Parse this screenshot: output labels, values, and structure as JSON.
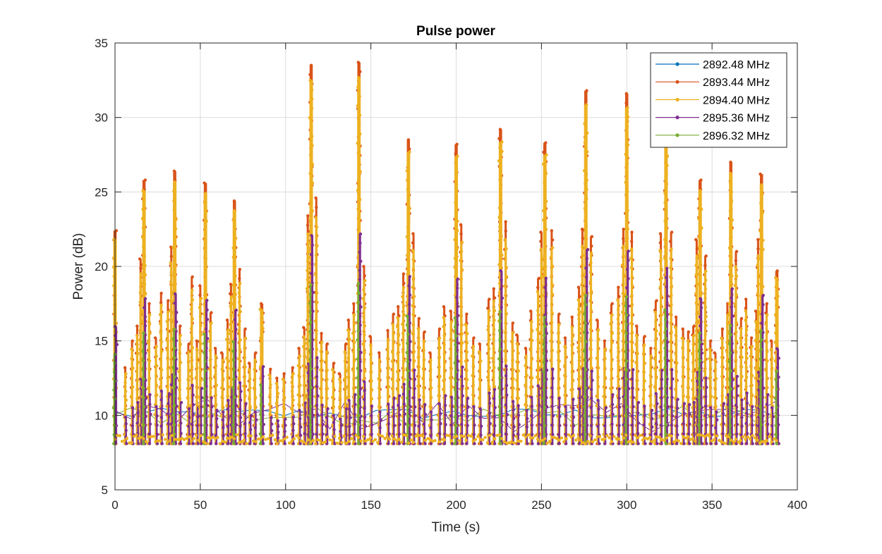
{
  "chart_data": {
    "type": "line",
    "title": "Pulse power",
    "xlabel": "Time (s)",
    "ylabel": "Power (dB)",
    "xlim": [
      0,
      400
    ],
    "ylim": [
      5,
      35
    ],
    "xticks": [
      0,
      50,
      100,
      150,
      200,
      250,
      300,
      350,
      400
    ],
    "yticks": [
      5,
      10,
      15,
      20,
      25,
      30,
      35
    ],
    "grid": true,
    "legend_position": "top-right",
    "series": [
      {
        "name": "2892.48 MHz",
        "color": "#0072BD"
      },
      {
        "name": "2893.44 MHz",
        "color": "#D95319"
      },
      {
        "name": "2894.40 MHz",
        "color": "#EDB120"
      },
      {
        "name": "2895.36 MHz",
        "color": "#7E2F8E"
      },
      {
        "name": "2896.32 MHz",
        "color": "#77AC30"
      }
    ],
    "peaks": [
      {
        "t": 0,
        "y": 22.4
      },
      {
        "t": 17,
        "y": 25.8
      },
      {
        "t": 35,
        "y": 26.4
      },
      {
        "t": 53,
        "y": 25.6
      },
      {
        "t": 70,
        "y": 24.4
      },
      {
        "t": 86,
        "y": 17.5
      },
      {
        "t": 115,
        "y": 33.5
      },
      {
        "t": 143,
        "y": 33.7
      },
      {
        "t": 172,
        "y": 28.5
      },
      {
        "t": 200,
        "y": 28.2
      },
      {
        "t": 226,
        "y": 29.2
      },
      {
        "t": 252,
        "y": 28.3
      },
      {
        "t": 276,
        "y": 31.8
      },
      {
        "t": 300,
        "y": 31.6
      },
      {
        "t": 323,
        "y": 29.5
      },
      {
        "t": 343,
        "y": 25.8
      },
      {
        "t": 361,
        "y": 27.0
      },
      {
        "t": 379,
        "y": 26.2
      },
      {
        "t": 388,
        "y": 19.7
      }
    ],
    "secondary_peaks": [
      {
        "t": 6,
        "y": 13.2
      },
      {
        "t": 10,
        "y": 15.0
      },
      {
        "t": 13,
        "y": 16.0
      },
      {
        "t": 15,
        "y": 20.5
      },
      {
        "t": 20,
        "y": 17.5
      },
      {
        "t": 24,
        "y": 15.2
      },
      {
        "t": 27,
        "y": 18.2
      },
      {
        "t": 31,
        "y": 17.7
      },
      {
        "t": 33,
        "y": 21.3
      },
      {
        "t": 38,
        "y": 16.0
      },
      {
        "t": 43,
        "y": 14.8
      },
      {
        "t": 45,
        "y": 19.3
      },
      {
        "t": 48,
        "y": 15.0
      },
      {
        "t": 50,
        "y": 18.7
      },
      {
        "t": 56,
        "y": 16.9
      },
      {
        "t": 59,
        "y": 14.5
      },
      {
        "t": 63,
        "y": 14.2
      },
      {
        "t": 66,
        "y": 16.4
      },
      {
        "t": 68,
        "y": 18.8
      },
      {
        "t": 73,
        "y": 19.8
      },
      {
        "t": 76,
        "y": 15.8
      },
      {
        "t": 79,
        "y": 13.5
      },
      {
        "t": 82,
        "y": 14.2
      },
      {
        "t": 91,
        "y": 13.1
      },
      {
        "t": 95,
        "y": 12.5
      },
      {
        "t": 99,
        "y": 12.8
      },
      {
        "t": 104,
        "y": 13.2
      },
      {
        "t": 108,
        "y": 14.5
      },
      {
        "t": 111,
        "y": 15.9
      },
      {
        "t": 113,
        "y": 23.4
      },
      {
        "t": 118,
        "y": 24.6
      },
      {
        "t": 121,
        "y": 15.5
      },
      {
        "t": 124,
        "y": 14.8
      },
      {
        "t": 128,
        "y": 13.5
      },
      {
        "t": 132,
        "y": 12.8
      },
      {
        "t": 135,
        "y": 14.8
      },
      {
        "t": 137,
        "y": 16.4
      },
      {
        "t": 140,
        "y": 17.5
      },
      {
        "t": 146,
        "y": 20.0
      },
      {
        "t": 150,
        "y": 15.3
      },
      {
        "t": 155,
        "y": 14.2
      },
      {
        "t": 160,
        "y": 15.7
      },
      {
        "t": 163,
        "y": 16.8
      },
      {
        "t": 166,
        "y": 17.3
      },
      {
        "t": 169,
        "y": 19.5
      },
      {
        "t": 175,
        "y": 22.2
      },
      {
        "t": 178,
        "y": 16.5
      },
      {
        "t": 181,
        "y": 15.6
      },
      {
        "t": 185,
        "y": 14.2
      },
      {
        "t": 190,
        "y": 15.8
      },
      {
        "t": 193,
        "y": 17.3
      },
      {
        "t": 197,
        "y": 17.0
      },
      {
        "t": 203,
        "y": 22.8
      },
      {
        "t": 206,
        "y": 16.8
      },
      {
        "t": 210,
        "y": 15.2
      },
      {
        "t": 214,
        "y": 14.8
      },
      {
        "t": 219,
        "y": 17.8
      },
      {
        "t": 222,
        "y": 18.5
      },
      {
        "t": 229,
        "y": 23.0
      },
      {
        "t": 233,
        "y": 16.2
      },
      {
        "t": 236,
        "y": 15.4
      },
      {
        "t": 241,
        "y": 14.5
      },
      {
        "t": 244,
        "y": 17.0
      },
      {
        "t": 248,
        "y": 19.2
      },
      {
        "t": 250,
        "y": 22.3
      },
      {
        "t": 256,
        "y": 22.4
      },
      {
        "t": 260,
        "y": 16.8
      },
      {
        "t": 264,
        "y": 15.2
      },
      {
        "t": 268,
        "y": 16.6
      },
      {
        "t": 272,
        "y": 18.6
      },
      {
        "t": 274,
        "y": 22.5
      },
      {
        "t": 279,
        "y": 22.0
      },
      {
        "t": 283,
        "y": 16.4
      },
      {
        "t": 287,
        "y": 15.0
      },
      {
        "t": 291,
        "y": 17.5
      },
      {
        "t": 295,
        "y": 18.6
      },
      {
        "t": 298,
        "y": 22.5
      },
      {
        "t": 303,
        "y": 22.3
      },
      {
        "t": 306,
        "y": 16.0
      },
      {
        "t": 310,
        "y": 15.3
      },
      {
        "t": 314,
        "y": 14.5
      },
      {
        "t": 317,
        "y": 17.7
      },
      {
        "t": 320,
        "y": 22.2
      },
      {
        "t": 326,
        "y": 22.3
      },
      {
        "t": 329,
        "y": 16.6
      },
      {
        "t": 333,
        "y": 15.8
      },
      {
        "t": 336,
        "y": 15.6
      },
      {
        "t": 339,
        "y": 16.0
      },
      {
        "t": 341,
        "y": 21.8
      },
      {
        "t": 346,
        "y": 20.7
      },
      {
        "t": 349,
        "y": 15.0
      },
      {
        "t": 352,
        "y": 14.2
      },
      {
        "t": 356,
        "y": 15.8
      },
      {
        "t": 359,
        "y": 17.5
      },
      {
        "t": 364,
        "y": 21.0
      },
      {
        "t": 367,
        "y": 16.5
      },
      {
        "t": 370,
        "y": 17.8
      },
      {
        "t": 373,
        "y": 15.2
      },
      {
        "t": 376,
        "y": 17.0
      },
      {
        "t": 377,
        "y": 21.8
      },
      {
        "t": 382,
        "y": 17.5
      },
      {
        "t": 385,
        "y": 15.0
      }
    ],
    "baseline_min": 8.1,
    "baseline_level": 9.7
  }
}
